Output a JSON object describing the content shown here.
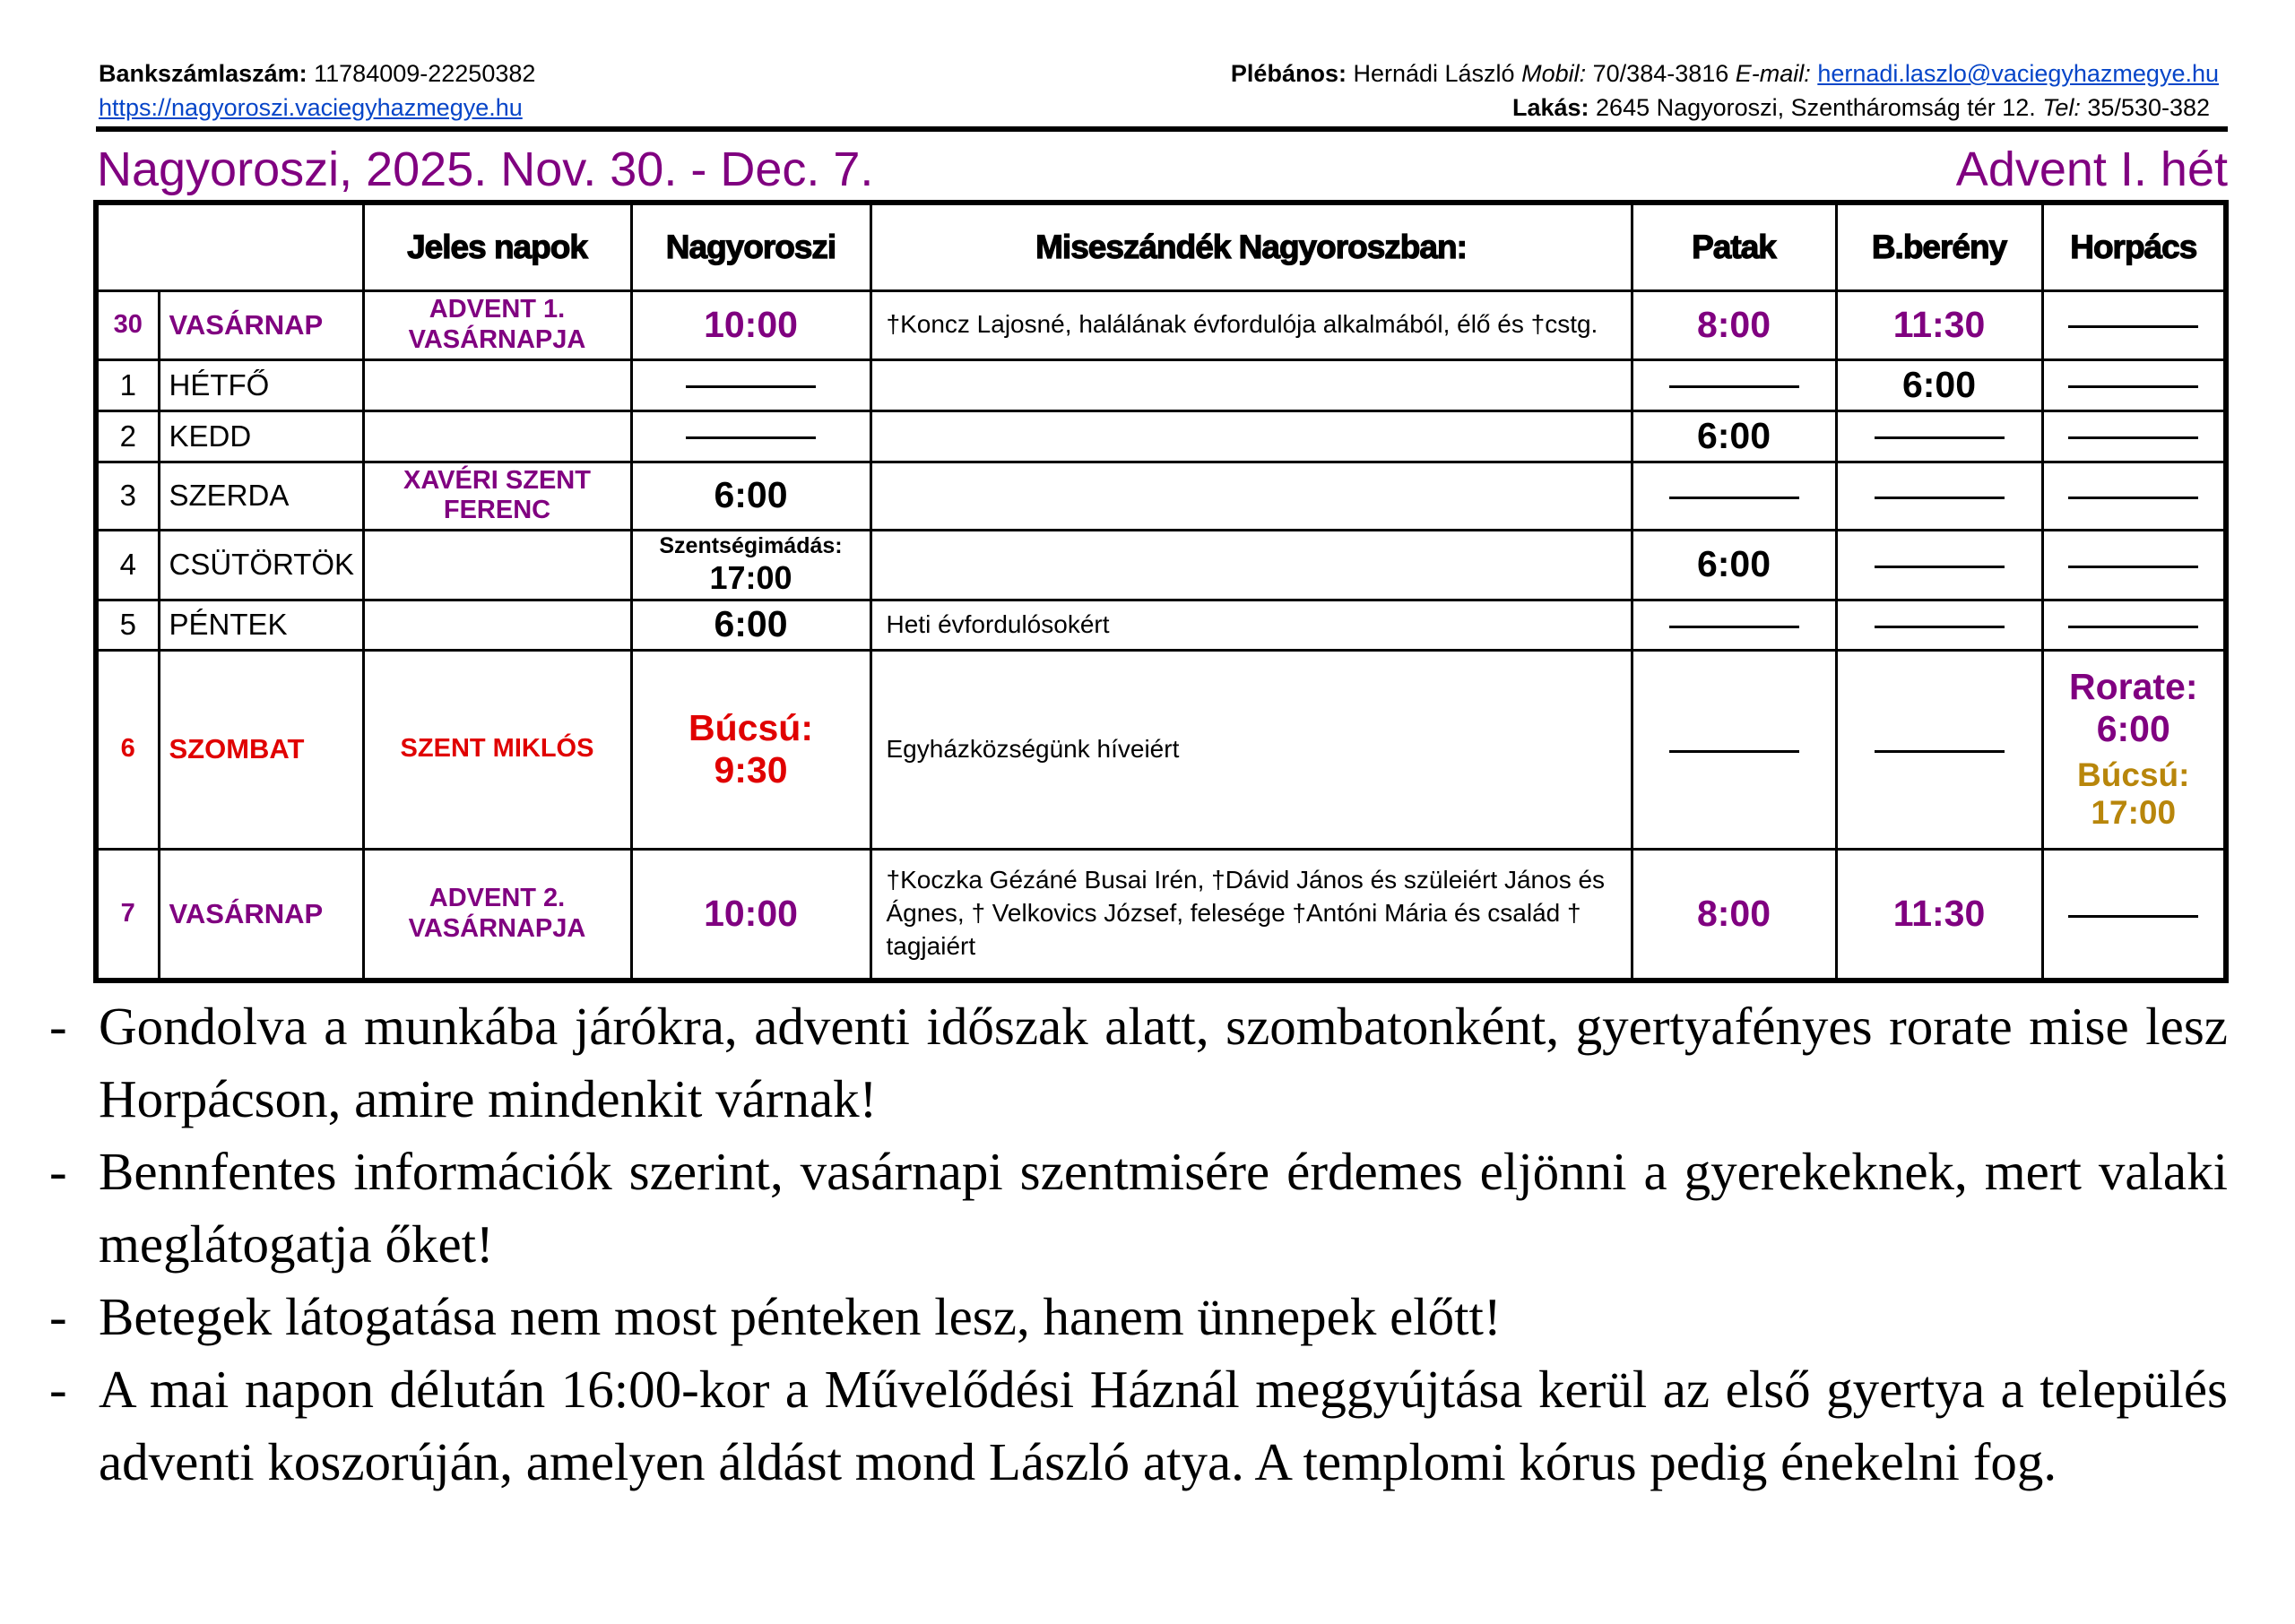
{
  "header": {
    "bank_label": "Bankszámlaszám:",
    "bank_value": "11784009-22250382",
    "website": "https://nagyoroszi.vaciegyhazmegye.hu",
    "priest_label": "Plébános:",
    "priest_name": "Hernádi László",
    "mobile_label": "Mobil:",
    "mobile_value": "70/384-3816",
    "email_label": "E-mail:",
    "email_value": "hernadi.laszlo@vaciegyhazmegye.hu",
    "address_label": "Lakás:",
    "address_value": "2645 Nagyoroszi, Szentháromság tér 12.",
    "tel_label": "Tel:",
    "tel_value": "35/530-382"
  },
  "title": {
    "left": "Nagyoroszi, 2025. Nov. 30. - Dec. 7.",
    "right": "Advent I. hét"
  },
  "colors": {
    "purple": "#800080",
    "red": "#e00000",
    "gold": "#b8860b",
    "link": "#0645c8"
  },
  "table": {
    "headers": [
      "",
      "Jeles napok",
      "Nagyoroszi",
      "Miseszándék Nagyoroszban:",
      "Patak",
      "B.berény",
      "Horpács"
    ],
    "rows": [
      {
        "num": "30",
        "day": "VASÁRNAP",
        "feast": "ADVENT 1. VASÁRNAPJA",
        "nagyoroszi": "10:00",
        "intention": "†Koncz Lajosné, halálának évfordulója alkalmából, élő és †cstg.",
        "patak": "8:00",
        "bbereny": "11:30",
        "horpacs": "—"
      },
      {
        "num": "1",
        "day": "HÉTFŐ",
        "feast": "",
        "nagyoroszi": "—",
        "intention": "",
        "patak": "—",
        "bbereny": "6:00",
        "horpacs": "—"
      },
      {
        "num": "2",
        "day": "KEDD",
        "feast": "",
        "nagyoroszi": "—",
        "intention": "",
        "patak": "6:00",
        "bbereny": "—",
        "horpacs": "—"
      },
      {
        "num": "3",
        "day": "SZERDA",
        "feast": "XAVÉRI SZENT FERENC",
        "nagyoroszi": "6:00",
        "intention": "",
        "patak": "—",
        "bbereny": "—",
        "horpacs": "—"
      },
      {
        "num": "4",
        "day": "CSÜTÖRTÖK",
        "feast": "",
        "nagyoroszi_label": "Szentségimádás:",
        "nagyoroszi": "17:00",
        "intention": "",
        "patak": "6:00",
        "bbereny": "—",
        "horpacs": "—"
      },
      {
        "num": "5",
        "day": "PÉNTEK",
        "feast": "",
        "nagyoroszi": "6:00",
        "intention": "Heti évfordulósokért",
        "patak": "—",
        "bbereny": "—",
        "horpacs": "—"
      },
      {
        "num": "6",
        "day": "SZOMBAT",
        "feast": "SZENT MIKLÓS",
        "nagyoroszi_label": "Búcsú:",
        "nagyoroszi": "9:30",
        "intention": "Egyházközségünk híveiért",
        "patak": "—",
        "bbereny": "—",
        "horpacs_1_label": "Rorate:",
        "horpacs_1": "6:00",
        "horpacs_2_label": "Búcsú:",
        "horpacs_2": "17:00"
      },
      {
        "num": "7",
        "day": "VASÁRNAP",
        "feast": "ADVENT 2. VASÁRNAPJA",
        "nagyoroszi": "10:00",
        "intention": "†Koczka Gézáné Busai Irén, †Dávid János és szüleiért János és Ágnes, † Velkovics József, felesége †Antóni Mária és család † tagjaiért",
        "patak": "8:00",
        "bbereny": "11:30",
        "horpacs": "—"
      }
    ]
  },
  "notes": [
    {
      "bullet": "-",
      "text": "Gondolva a munkába járókra, adventi időszak alatt, szombatonként, gyertyafényes rorate mise lesz Horpácson, amire mindenkit várnak!"
    },
    {
      "bullet": "-",
      "text": "Bennfentes információk szerint, vasárnapi szentmisére érdemes eljönni a gyerekeknek, mert valaki meglátogatja őket!"
    },
    {
      "bullet": "-",
      "text": "Betegek látogatása nem most pénteken lesz, hanem ünnepek előtt!"
    },
    {
      "bullet": "-",
      "text": "A mai napon délután 16:00-kor a Művelődési Háznál meggyújtása kerül az első gyertya a település adventi koszorúján, amelyen áldást mond László atya. A templomi kórus pedig énekelni fog."
    }
  ]
}
